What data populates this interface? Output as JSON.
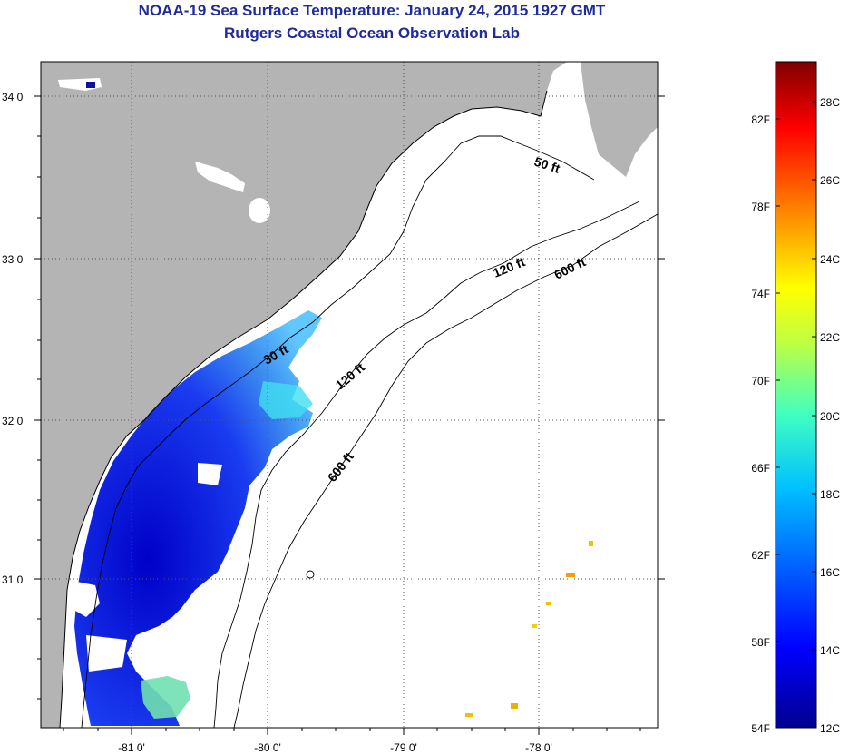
{
  "header": {
    "title": "NOAA-19 Sea Surface Temperature:  January 24, 2015 1927 GMT",
    "subtitle": "Rutgers Coastal Ocean Observation Lab"
  },
  "map": {
    "lat_labels": [
      "34 0'",
      "33 0'",
      "32 0'",
      "31 0'"
    ],
    "lon_labels": [
      "-81 0'",
      "-80 0'",
      "-79 0'",
      "-78 0'"
    ],
    "lon_range": [
      -81.5,
      -77.0
    ],
    "lat_range": [
      30.15,
      34.2
    ],
    "land_color": "#b4b4b4",
    "ocean_color": "#ffffff",
    "contour_labels": [
      "50 ft",
      "120 ft",
      "600 ft",
      "30 ft",
      "120 ft",
      "600 ft"
    ]
  },
  "colorbar": {
    "fahrenheit_labels": [
      "82F",
      "78F",
      "74F",
      "70F",
      "66F",
      "62F",
      "58F",
      "54F"
    ],
    "celsius_labels": [
      "28C",
      "26C",
      "24C",
      "22C",
      "20C",
      "18C",
      "16C",
      "14C",
      "12C"
    ],
    "min_c": 12,
    "max_c": 29.5,
    "colormap": [
      "#00008f",
      "#0000ff",
      "#0080ff",
      "#00ffff",
      "#80ff80",
      "#ffff00",
      "#ff8000",
      "#ff0000",
      "#800000"
    ]
  }
}
